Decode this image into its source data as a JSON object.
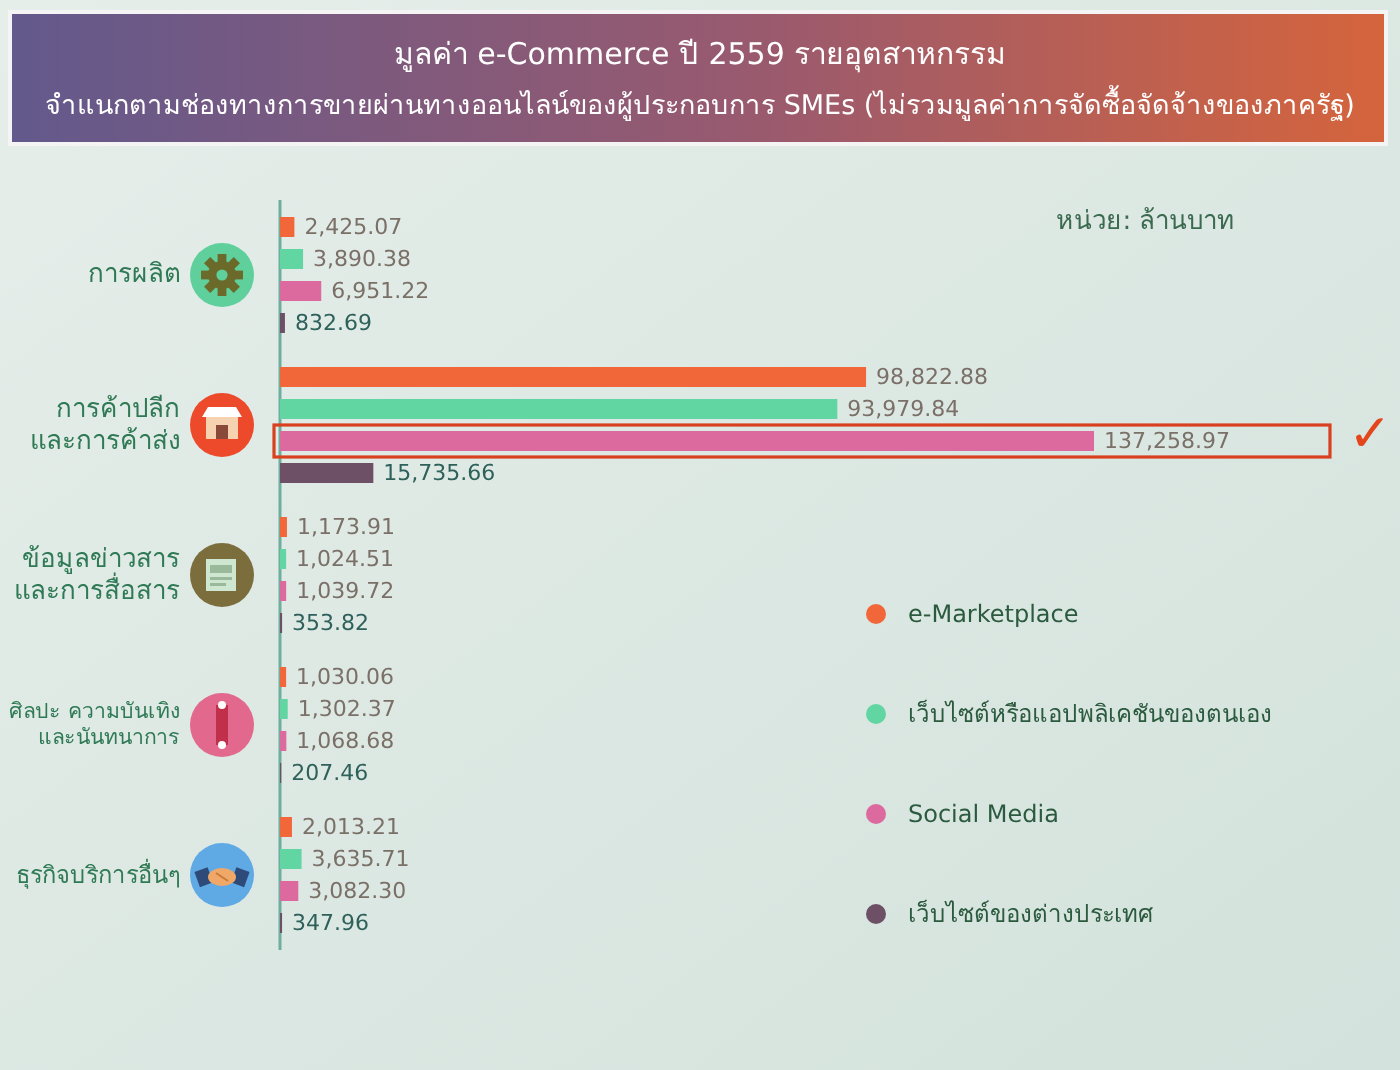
{
  "chart_data": {
    "type": "bar",
    "orientation": "horizontal",
    "title": "มูลค่า e-Commerce ปี 2559 รายอุตสาหกรรม",
    "subtitle": "จำแนกตามช่องทางการขายผ่านทางออนไลน์ของผู้ประกอบการ SMEs (ไม่รวมมูลค่าการจัดซื้อจัดจ้างของภาครัฐ)",
    "categories": [
      "การผลิต",
      "การค้าปลีก\nและการค้าส่ง",
      "ข้อมูลข่าวสาร\nและการสื่อสาร",
      "ศิลปะ ความบันเทิง\nและนันทนาการ",
      "ธุรกิจบริการอื่นๆ"
    ],
    "series": [
      {
        "name": "e-Marketplace",
        "color": "#f2673a",
        "values": [
          2425.07,
          98822.88,
          1173.91,
          1030.06,
          2013.21
        ],
        "value_labels": [
          "2,425.07",
          "98,822.88",
          "1,173.91",
          "1,030.06",
          "2,013.21"
        ]
      },
      {
        "name": "เว็บไซต์หรือแอปพลิเคชันของตนเอง",
        "color": "#62d6a2",
        "values": [
          3890.38,
          93979.84,
          1024.51,
          1302.37,
          3635.71
        ],
        "value_labels": [
          "3,890.38",
          "93,979.84",
          "1,024.51",
          "1,302.37",
          "3,635.71"
        ]
      },
      {
        "name": "Social Media",
        "color": "#dc6a9e",
        "values": [
          6951.22,
          137258.97,
          1039.72,
          1068.68,
          3082.3
        ],
        "value_labels": [
          "6,951.22",
          "137,258.97",
          "1,039.72",
          "1,068.68",
          "3,082.30"
        ]
      },
      {
        "name": "เว็บไซต์ของต่างประเทศ",
        "color": "#6e5066",
        "values": [
          832.69,
          15735.66,
          353.82,
          207.46,
          347.96
        ],
        "value_labels": [
          "832.69",
          "15,735.66",
          "353.82",
          "207.46",
          "347.96"
        ]
      }
    ],
    "legend": "bottom right",
    "annotations": [
      "หน่วย: ล้านบาท",
      "✓"
    ]
  }
}
